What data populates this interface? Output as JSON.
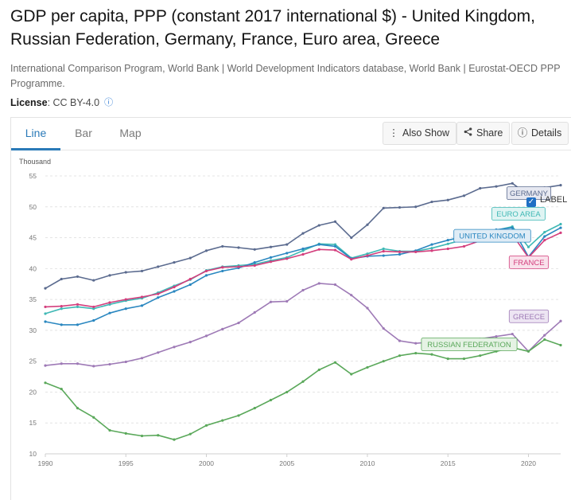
{
  "header": {
    "title": "GDP per capita, PPP (constant 2017 international $) - United Kingdom, Russian Federation, Germany, France, Euro area, Greece",
    "source": "International Comparison Program, World Bank | World Development Indicators database, World Bank | Eurostat-OECD PPP Programme.",
    "license_label": "License",
    "license_value": ": CC BY-4.0",
    "info_icon": "info-icon"
  },
  "tabs": [
    {
      "label": "Line",
      "active": true
    },
    {
      "label": "Bar",
      "active": false
    },
    {
      "label": "Map",
      "active": false
    }
  ],
  "toolbar": {
    "also_show": "Also Show",
    "share": "Share",
    "details": "Details"
  },
  "label_toggle": {
    "text": "LABEL",
    "checked": true
  },
  "chart_data": {
    "type": "line",
    "title": "GDP per capita, PPP (constant 2017 international $)",
    "ylabel": "Thousand",
    "xlabel": "",
    "xlim": [
      1990,
      2022
    ],
    "ylim": [
      10,
      55
    ],
    "yticks": [
      10,
      15,
      20,
      25,
      30,
      35,
      40,
      45,
      50,
      55
    ],
    "xticks": [
      1990,
      1995,
      2000,
      2005,
      2010,
      2015,
      2020
    ],
    "grid": true,
    "x": [
      1990,
      1991,
      1992,
      1993,
      1994,
      1995,
      1996,
      1997,
      1998,
      1999,
      2000,
      2001,
      2002,
      2003,
      2004,
      2005,
      2006,
      2007,
      2008,
      2009,
      2010,
      2011,
      2012,
      2013,
      2014,
      2015,
      2016,
      2017,
      2018,
      2019,
      2020,
      2021,
      2022
    ],
    "series": [
      {
        "name": "GERMANY",
        "color": "#5b6b8f",
        "label_bg": "#e6e8f1",
        "values": [
          36.8,
          38.3,
          38.7,
          38.1,
          38.9,
          39.4,
          39.6,
          40.3,
          41.0,
          41.7,
          42.9,
          43.6,
          43.4,
          43.1,
          43.5,
          43.9,
          45.7,
          47.0,
          47.6,
          45.0,
          47.1,
          49.8,
          49.9,
          50.0,
          50.8,
          51.1,
          51.8,
          53.0,
          53.3,
          53.8,
          51.9,
          53.1,
          53.5
        ]
      },
      {
        "name": "EURO AREA",
        "color": "#3fb8b5",
        "label_bg": "#dff4f3",
        "values": [
          32.7,
          33.5,
          33.8,
          33.5,
          34.2,
          34.8,
          35.2,
          36.1,
          37.2,
          38.2,
          39.7,
          40.3,
          40.5,
          40.7,
          41.3,
          41.8,
          42.9,
          44.0,
          43.9,
          41.7,
          42.4,
          43.2,
          42.8,
          42.8,
          43.3,
          44.0,
          44.7,
          45.6,
          46.2,
          46.8,
          43.5,
          45.9,
          47.2
        ]
      },
      {
        "name": "UNITED KINGDOM",
        "color": "#2a87c0",
        "label_bg": "#dfecf6",
        "values": [
          31.4,
          30.9,
          30.9,
          31.6,
          32.8,
          33.5,
          34.0,
          35.3,
          36.3,
          37.4,
          38.9,
          39.6,
          40.1,
          41.0,
          41.8,
          42.5,
          43.2,
          43.9,
          43.6,
          41.6,
          42.0,
          42.1,
          42.3,
          42.9,
          43.9,
          44.6,
          45.2,
          45.9,
          46.3,
          46.6,
          41.9,
          45.2,
          46.6
        ]
      },
      {
        "name": "FRANCE",
        "color": "#d33f7d",
        "label_bg": "#f9e1eb",
        "values": [
          33.8,
          33.9,
          34.2,
          33.8,
          34.5,
          35.0,
          35.4,
          35.9,
          37.0,
          38.3,
          39.6,
          40.2,
          40.3,
          40.5,
          41.1,
          41.6,
          42.3,
          43.1,
          43.0,
          41.5,
          42.1,
          42.8,
          42.7,
          42.7,
          42.9,
          43.2,
          43.6,
          44.5,
          45.0,
          45.5,
          41.8,
          44.6,
          45.8
        ]
      },
      {
        "name": "GREECE",
        "color": "#9e7ab6",
        "label_bg": "#ede5f3",
        "values": [
          24.3,
          24.6,
          24.6,
          24.2,
          24.5,
          24.9,
          25.5,
          26.4,
          27.3,
          28.1,
          29.1,
          30.2,
          31.2,
          32.9,
          34.6,
          34.7,
          36.5,
          37.6,
          37.4,
          35.7,
          33.6,
          30.3,
          28.3,
          27.9,
          28.1,
          28.2,
          28.2,
          28.6,
          29.0,
          29.4,
          26.6,
          29.2,
          31.5
        ]
      },
      {
        "name": "RUSSIAN FEDERATION",
        "color": "#5aa85a",
        "label_bg": "#e5f2e4",
        "values": [
          21.5,
          20.5,
          17.4,
          15.9,
          13.8,
          13.3,
          12.9,
          13.0,
          12.3,
          13.2,
          14.6,
          15.4,
          16.2,
          17.4,
          18.7,
          20.0,
          21.7,
          23.6,
          24.8,
          22.9,
          24.0,
          25.0,
          25.9,
          26.3,
          26.1,
          25.4,
          25.4,
          25.9,
          26.6,
          27.2,
          26.6,
          28.5,
          27.6
        ]
      }
    ]
  }
}
